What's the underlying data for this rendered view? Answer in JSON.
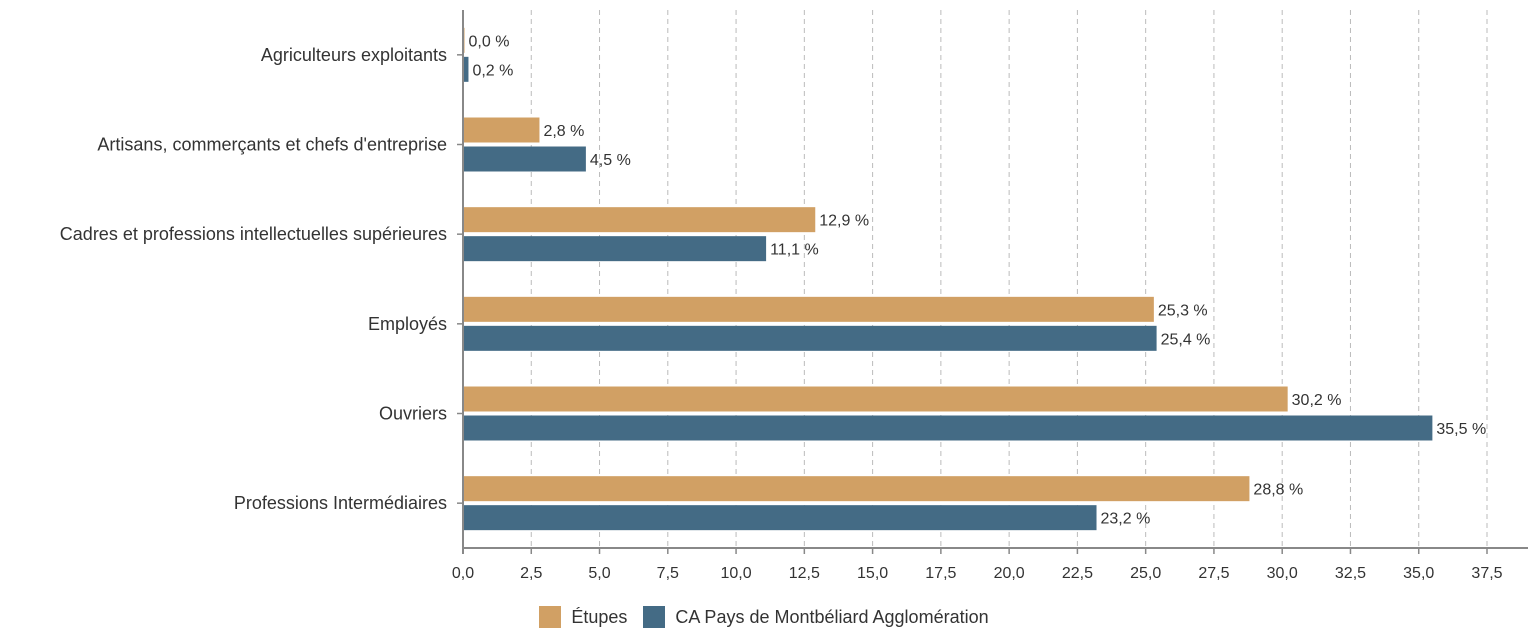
{
  "chart_data": {
    "type": "bar",
    "orientation": "horizontal",
    "categories": [
      "Agriculteurs exploitants",
      "Artisans, commerçants et chefs d'entreprise",
      "Cadres et professions intellectuelles supérieures",
      "Employés",
      "Ouvriers",
      "Professions Intermédiaires"
    ],
    "series": [
      {
        "name": "Étupes",
        "color": "#D1A064",
        "values": [
          0.0,
          2.8,
          12.9,
          25.3,
          30.2,
          28.8
        ],
        "labels": [
          "0,0 %",
          "2,8 %",
          "12,9 %",
          "25,3 %",
          "30,2 %",
          "28,8 %"
        ]
      },
      {
        "name": "CA Pays de Montbéliard Agglomération",
        "color": "#446B85",
        "values": [
          0.2,
          4.5,
          11.1,
          25.4,
          35.5,
          23.2
        ],
        "labels": [
          "0,2 %",
          "4,5 %",
          "11,1 %",
          "25,4 %",
          "35,5 %",
          "23,2 %"
        ]
      }
    ],
    "xlim": [
      0,
      37.5
    ],
    "xticks": [
      0,
      2.5,
      5,
      7.5,
      10,
      12.5,
      15,
      17.5,
      20,
      22.5,
      25,
      27.5,
      30,
      32.5,
      35,
      37.5
    ],
    "xtick_labels": [
      "0,0",
      "2,5",
      "5,0",
      "7,5",
      "10,0",
      "12,5",
      "15,0",
      "17,5",
      "20,0",
      "22,5",
      "25,0",
      "27,5",
      "30,0",
      "32,5",
      "35,0",
      "37,5"
    ],
    "grid": "vertical dashed",
    "legend_position": "bottom-center",
    "title": "",
    "xlabel": "",
    "ylabel": ""
  }
}
